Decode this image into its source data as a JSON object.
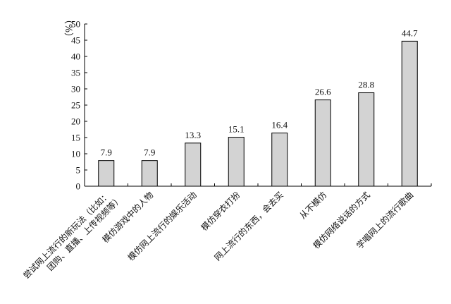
{
  "chart_data": {
    "type": "bar",
    "categories": [
      [
        "尝试网上流行的新玩法（比如：",
        "团购、直播、上传视频等）"
      ],
      [
        "模仿游戏中的人物"
      ],
      [
        "模仿网上流行的娱乐活动"
      ],
      [
        "模仿穿衣打扮"
      ],
      [
        "网上流行的东西，会去买"
      ],
      [
        "从不模仿"
      ],
      [
        "模仿网络说话的方式"
      ],
      [
        "学唱网上的流行歌曲"
      ]
    ],
    "values": [
      7.9,
      7.9,
      13.3,
      15.1,
      16.4,
      26.6,
      28.8,
      44.7
    ],
    "value_labels": [
      "7.9",
      "7.9",
      "13.3",
      "15.1",
      "16.4",
      "26.6",
      "28.8",
      "44.7"
    ],
    "ylabel": "（%）",
    "ylim": [
      0,
      50
    ],
    "yticks": [
      "0",
      "5",
      "10",
      "15",
      "20",
      "25",
      "30",
      "35",
      "40",
      "45",
      "50"
    ],
    "bar_color": "#d3d3d3",
    "bar_stroke": "#000000",
    "grid": false,
    "legend": "none"
  }
}
